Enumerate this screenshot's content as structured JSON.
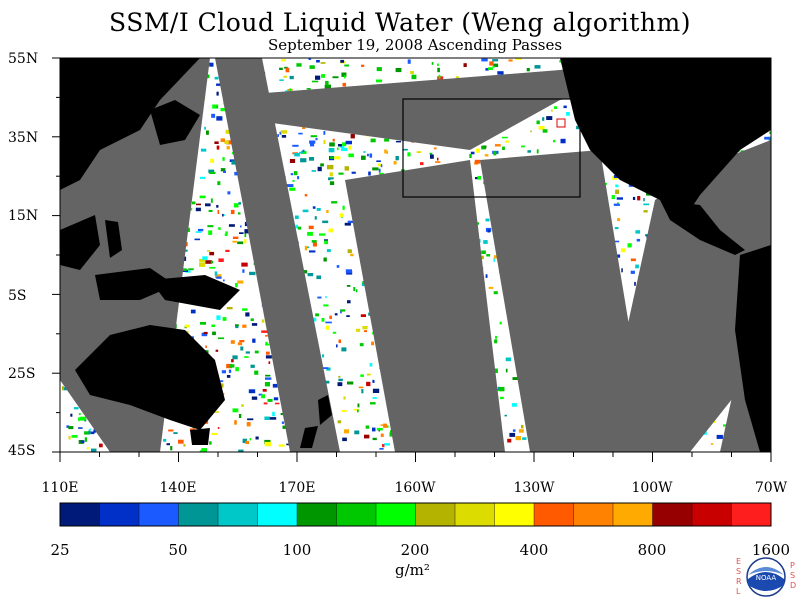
{
  "header": {
    "title": "SSM/I Cloud Liquid Water (Weng algorithm)",
    "subtitle": "September 19, 2008  Ascending Passes"
  },
  "map": {
    "lat_labels": [
      "55N",
      "35N",
      "15N",
      "5S",
      "25S",
      "45S"
    ],
    "lon_labels": [
      "110E",
      "140E",
      "170E",
      "160W",
      "130W",
      "100W",
      "70W"
    ],
    "colors": {
      "land": "#000000",
      "no_data_gap": "#646464",
      "clear_ocean": "#ffffff"
    },
    "inset_box": "black rectangle over northeast Pacific",
    "marker": "small red square near California coast"
  },
  "colorbar": {
    "ticks": [
      "25",
      "50",
      "100",
      "200",
      "400",
      "800",
      "1600"
    ],
    "units": "g/m²",
    "colors": [
      "#001a7a",
      "#0030c8",
      "#1a5aff",
      "#009696",
      "#00c8c8",
      "#00ffff",
      "#009600",
      "#00c800",
      "#00ff00",
      "#b4b400",
      "#dcdc00",
      "#ffff00",
      "#ff5a00",
      "#ff8200",
      "#ffaa00",
      "#960000",
      "#c80000",
      "#ff1e1e"
    ]
  },
  "logo": {
    "left_letters": "E S R L",
    "right_letters": "P S D",
    "emblem_text": "NOAA"
  }
}
